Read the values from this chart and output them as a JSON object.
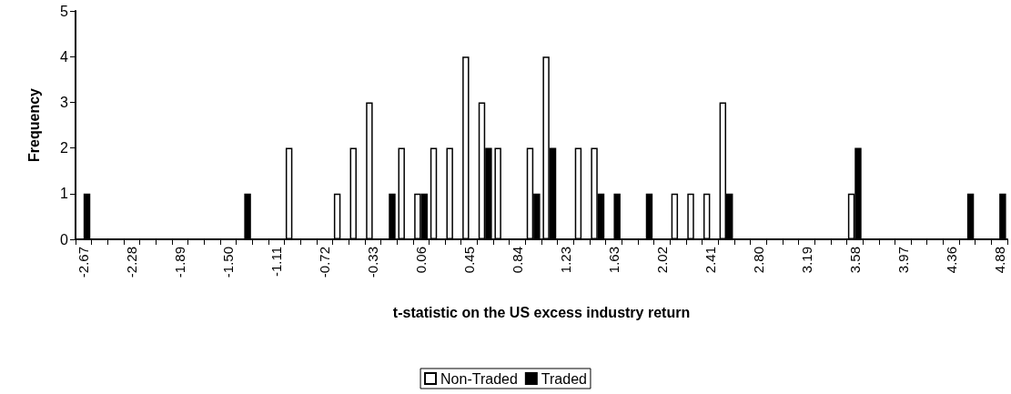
{
  "chart_data": {
    "type": "bar",
    "xlabel": "t-statistic on the US excess industry return",
    "ylabel": "Frequency",
    "categories": [
      "-2.67",
      null,
      null,
      "-2.28",
      null,
      null,
      "-1.89",
      null,
      null,
      "-1.50",
      null,
      null,
      "-1.11",
      null,
      null,
      "-0.72",
      null,
      null,
      "-0.33",
      null,
      null,
      "0.06",
      null,
      null,
      "0.45",
      null,
      null,
      "0.84",
      null,
      null,
      "1.23",
      null,
      null,
      "1.63",
      null,
      null,
      "2.02",
      null,
      null,
      "2.41",
      null,
      null,
      "2.80",
      null,
      null,
      "3.19",
      null,
      null,
      "3.58",
      null,
      null,
      "3.97",
      null,
      null,
      "4.36",
      null,
      null,
      "4.88"
    ],
    "series": [
      {
        "name": "Non-Traded",
        "color": "#ffffff",
        "values": [
          0,
          0,
          0,
          0,
          0,
          0,
          0,
          0,
          0,
          0,
          0,
          0,
          0,
          2,
          0,
          0,
          1,
          2,
          3,
          0,
          2,
          1,
          2,
          2,
          4,
          3,
          2,
          0,
          2,
          4,
          0,
          2,
          2,
          0,
          0,
          0,
          0,
          1,
          1,
          1,
          3,
          0,
          0,
          0,
          0,
          0,
          0,
          0,
          1,
          0,
          0,
          0,
          0,
          0,
          0,
          0,
          0,
          0
        ]
      },
      {
        "name": "Traded",
        "color": "#000000",
        "values": [
          1,
          0,
          0,
          0,
          0,
          0,
          0,
          0,
          0,
          0,
          1,
          0,
          0,
          0,
          0,
          0,
          0,
          0,
          0,
          1,
          0,
          1,
          0,
          0,
          0,
          2,
          0,
          0,
          1,
          2,
          0,
          0,
          1,
          1,
          0,
          1,
          0,
          0,
          0,
          0,
          1,
          0,
          0,
          0,
          0,
          0,
          0,
          0,
          2,
          0,
          0,
          0,
          0,
          0,
          0,
          1,
          0,
          1
        ]
      }
    ],
    "ylim": [
      0,
      5
    ],
    "yticks": [
      0,
      1,
      2,
      3,
      4,
      5
    ],
    "grid": false,
    "legend": "bottom"
  }
}
